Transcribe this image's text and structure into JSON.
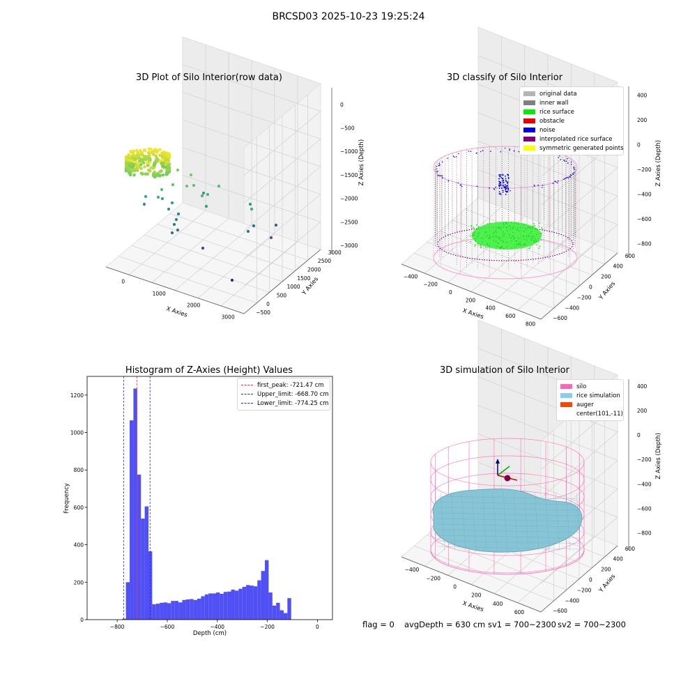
{
  "figure": {
    "suptitle": "BRCSD03 2025-10-23 19:25:24"
  },
  "panels": {
    "raw": {
      "title": "3D Plot of Silo Interior(row data)",
      "x_label": "X Axies",
      "y_label": "Y Axies",
      "z_label": "Z Axies (Depth)",
      "x_ticks": [
        "0",
        "1000",
        "2000",
        "3000"
      ],
      "y_ticks": [
        "3000",
        "2500",
        "2000",
        "1500",
        "1000",
        "500",
        "0",
        "−500"
      ],
      "z_ticks": [
        "0",
        "−500",
        "−1000",
        "−1500",
        "−2000",
        "−2500",
        "−3000"
      ]
    },
    "classify": {
      "title": "3D classify of Silo Interior",
      "x_label": "X Axies",
      "y_label": "Y Axies",
      "z_label": "Z Axies (Depth)",
      "x_ticks": [
        "−400",
        "−200",
        "0",
        "200",
        "400",
        "600",
        "800"
      ],
      "y_ticks": [
        "600",
        "400",
        "200",
        "0",
        "−200",
        "−400",
        "−600"
      ],
      "z_ticks": [
        "400",
        "200",
        "0",
        "−200",
        "−400",
        "−600",
        "−800"
      ],
      "legend": [
        {
          "label": "original data",
          "color": "#b4b4b4"
        },
        {
          "label": "inner wall",
          "color": "#808080"
        },
        {
          "label": "rice surface",
          "color": "#00ee00"
        },
        {
          "label": "obstacle",
          "color": "#ee0000"
        },
        {
          "label": "noise",
          "color": "#0000ee"
        },
        {
          "label": "interpolated rice surface",
          "color": "#800080"
        },
        {
          "label": "symmetric generated points",
          "color": "#ffff00"
        }
      ]
    },
    "histogram": {
      "title": "Histogram of Z-Axies (Height) Values",
      "xlabel": "Depth (cm)",
      "ylabel": "Frequency",
      "x_ticks": [
        "−800",
        "−600",
        "−400",
        "−200",
        "0"
      ],
      "y_ticks": [
        "0",
        "200",
        "400",
        "600",
        "800",
        "1000",
        "1200"
      ],
      "legend": [
        {
          "label": "first_peak: -721.47 cm",
          "color": "#ff2020"
        },
        {
          "label": "Upper_limit: -668.70 cm",
          "color": "#2020ff"
        },
        {
          "label": "Lower_limit: -774.25 cm",
          "color": "#2020ff"
        }
      ]
    },
    "simulation": {
      "title": "3D simulation of Silo Interior",
      "x_label": "X Axies",
      "y_label": "Y Axies",
      "z_label": "Z Axies (Depth)",
      "x_ticks": [
        "−400",
        "−200",
        "0",
        "200",
        "400",
        "600"
      ],
      "y_ticks": [
        "600",
        "400",
        "200",
        "0",
        "−200",
        "−400",
        "−600"
      ],
      "z_ticks": [
        "400",
        "200",
        "0",
        "−200",
        "−400",
        "−600",
        "−800"
      ],
      "legend": [
        {
          "label": "silo",
          "color": "#ff69b4"
        },
        {
          "label": "rice simulation",
          "color": "#87ceeb"
        },
        {
          "label": "auger",
          "color": "#ff4500"
        },
        {
          "label": "center(101,-11)",
          "color": ""
        }
      ]
    }
  },
  "status": {
    "flag": "flag = 0",
    "avg_depth": "avgDepth = 630 cm",
    "sv1": "sv1 = 700~2300",
    "sv2": "sv2 = 700~2300"
  },
  "chart_data": [
    {
      "type": "scatter",
      "title": "3D Plot of Silo Interior(row data)",
      "xlabel": "X Axies",
      "ylabel": "Y Axies",
      "zlabel": "Z Axies (Depth)",
      "xlim": [
        -500,
        3800
      ],
      "ylim": [
        -500,
        3000
      ],
      "zlim": [
        -3300,
        0
      ],
      "colormap": "viridis"
    },
    {
      "type": "scatter",
      "title": "3D classify of Silo Interior",
      "xlabel": "X Axies",
      "ylabel": "Y Axies",
      "zlabel": "Z Axies (Depth)",
      "xlim": [
        -500,
        800
      ],
      "ylim": [
        -600,
        600
      ],
      "zlim": [
        -900,
        300
      ],
      "series": [
        "original data",
        "inner wall",
        "rice surface",
        "obstacle",
        "noise",
        "interpolated rice surface",
        "symmetric generated points"
      ]
    },
    {
      "type": "bar",
      "title": "Histogram of Z-Axies (Height) Values",
      "xlabel": "Depth (cm)",
      "ylabel": "Frequency",
      "xlim": [
        -920,
        60
      ],
      "ylim": [
        0,
        1300
      ],
      "bin_width": 15,
      "x": [
        -780,
        -765,
        -750,
        -735,
        -720,
        -705,
        -690,
        -675,
        -660,
        -645,
        -630,
        -615,
        -600,
        -585,
        -570,
        -555,
        -540,
        -525,
        -510,
        -495,
        -480,
        -465,
        -450,
        -435,
        -420,
        -405,
        -390,
        -375,
        -360,
        -345,
        -330,
        -315,
        -300,
        -285,
        -270,
        -255,
        -240,
        -225,
        -210,
        -195,
        -180,
        -165,
        -150,
        -135,
        -120,
        -105,
        -90,
        -75,
        -60,
        -45,
        -30,
        -15
      ],
      "values": [
        5,
        200,
        1065,
        1235,
        775,
        540,
        605,
        365,
        82,
        85,
        90,
        92,
        88,
        100,
        100,
        92,
        105,
        108,
        110,
        105,
        112,
        125,
        135,
        140,
        140,
        145,
        138,
        148,
        150,
        160,
        155,
        165,
        175,
        185,
        182,
        178,
        210,
        260,
        318,
        145,
        75,
        90,
        50,
        35,
        115,
        0,
        0,
        0,
        0,
        0,
        0,
        0
      ],
      "markers": [
        {
          "name": "first_peak",
          "x": -721.47
        },
        {
          "name": "Upper_limit",
          "x": -668.7
        },
        {
          "name": "Lower_limit",
          "x": -774.25
        }
      ]
    },
    {
      "type": "scatter",
      "title": "3D simulation of Silo Interior",
      "xlabel": "X Axies",
      "ylabel": "Y Axies",
      "zlabel": "Z Axies (Depth)",
      "xlim": [
        -500,
        700
      ],
      "ylim": [
        -600,
        600
      ],
      "zlim": [
        -900,
        450
      ],
      "series": [
        "silo",
        "rice simulation",
        "auger",
        "center(101,-11)"
      ]
    }
  ]
}
